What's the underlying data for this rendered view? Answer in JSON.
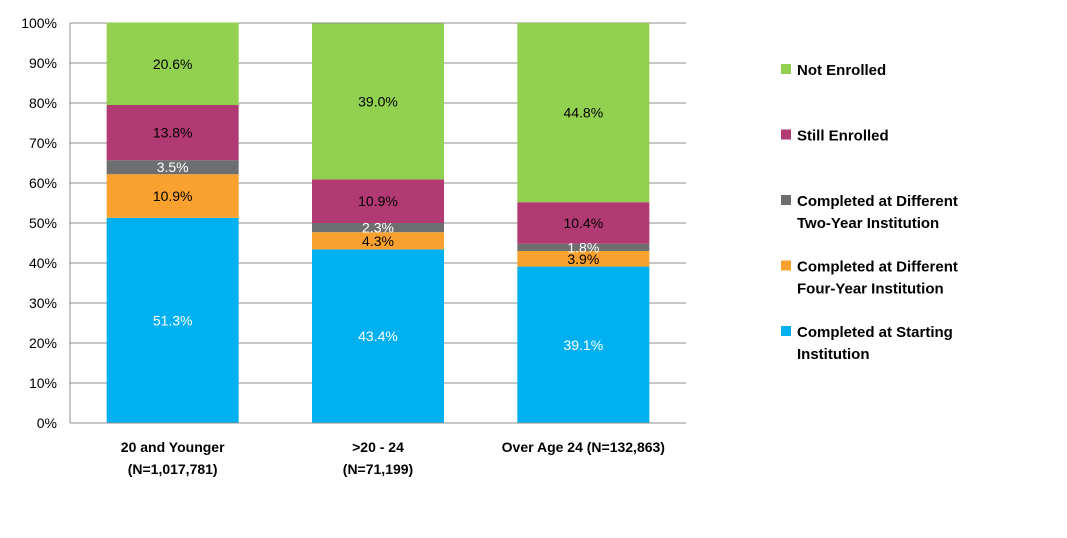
{
  "chart_data": {
    "type": "bar",
    "stacked": true,
    "ylim": [
      0,
      100
    ],
    "y_ticks": [
      "0%",
      "10%",
      "20%",
      "30%",
      "40%",
      "50%",
      "60%",
      "70%",
      "80%",
      "90%",
      "100%"
    ],
    "grid": true,
    "legend_position": "right",
    "categories": [
      {
        "line1": "20 and Younger",
        "line2": "(N=1,017,781)"
      },
      {
        "line1": ">20 - 24",
        "line2": "(N=71,199)"
      },
      {
        "line1": "Over Age 24 (N=132,863)",
        "line2": ""
      }
    ],
    "series": [
      {
        "name": "Completed at Starting Institution",
        "legend_lines": [
          "Completed at Starting",
          "Institution"
        ],
        "color": "#00B0F0",
        "label_color": "#ffffff",
        "values": [
          51.3,
          43.4,
          39.1
        ],
        "labels": [
          "51.3%",
          "43.4%",
          "39.1%"
        ]
      },
      {
        "name": "Completed at Different Four-Year Institution",
        "legend_lines": [
          "Completed at Different",
          "Four-Year Institution"
        ],
        "color": "#F9A12E",
        "label_color": "#000000",
        "values": [
          10.9,
          4.3,
          3.9
        ],
        "labels": [
          "10.9%",
          "4.3%",
          "3.9%"
        ]
      },
      {
        "name": "Completed at Different Two-Year Institution",
        "legend_lines": [
          "Completed at Different",
          "Two-Year Institution"
        ],
        "color": "#6D6E70",
        "label_color": "#ffffff",
        "values": [
          3.5,
          2.3,
          1.8
        ],
        "labels": [
          "3.5%",
          "2.3%",
          "1.8%"
        ]
      },
      {
        "name": "Still Enrolled",
        "legend_lines": [
          "Still Enrolled"
        ],
        "color": "#B23A72",
        "label_color": "#000000",
        "values": [
          13.8,
          10.9,
          10.4
        ],
        "labels": [
          "13.8%",
          "10.9%",
          "10.4%"
        ]
      },
      {
        "name": "Not Enrolled",
        "legend_lines": [
          "Not Enrolled"
        ],
        "color": "#92D050",
        "label_color": "#000000",
        "values": [
          20.6,
          39.0,
          44.8
        ],
        "labels": [
          "20.6%",
          "39.0%",
          "44.8%"
        ]
      }
    ]
  }
}
